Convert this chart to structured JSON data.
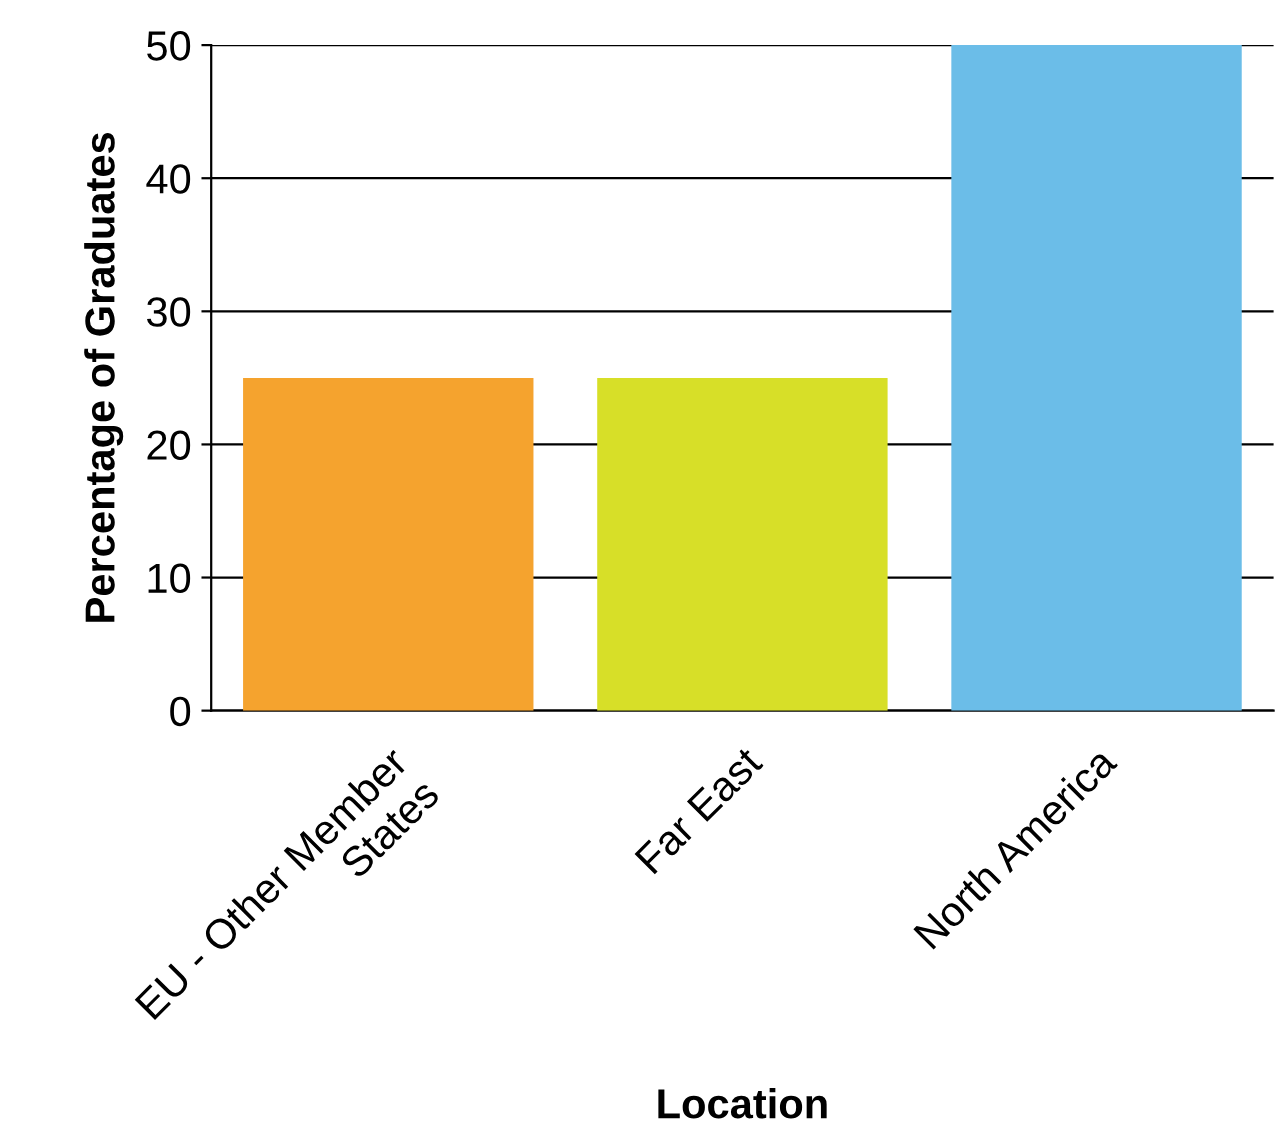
{
  "chart_data": {
    "type": "bar",
    "categories": [
      "EU - Other Member\nStates",
      "Far East",
      "North America"
    ],
    "values": [
      25,
      25,
      50
    ],
    "colors": [
      "#f5a32e",
      "#d7df28",
      "#6bbde8"
    ],
    "xlabel": "Location",
    "ylabel": "Percentage of Graduates",
    "ylim": [
      0,
      50
    ],
    "yticks": [
      0,
      10,
      20,
      30,
      40,
      50
    ],
    "grid": "y",
    "legend": false
  }
}
